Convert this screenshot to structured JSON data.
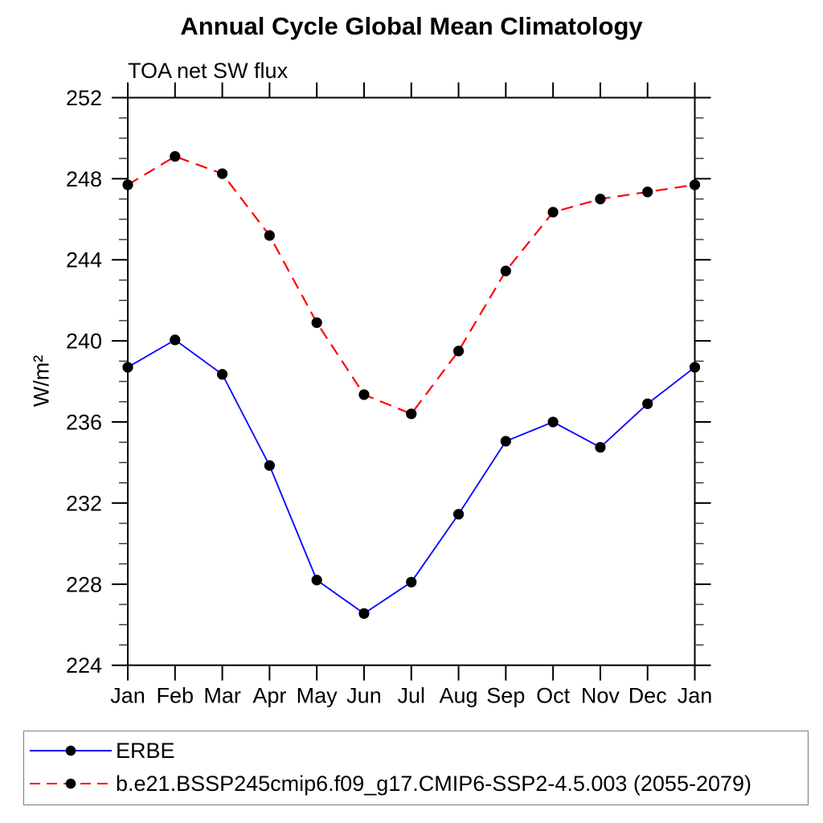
{
  "chart_data": {
    "type": "line",
    "title": "Annual Cycle Global Mean Climatology",
    "subtitle": "TOA net SW flux",
    "xlabel": "",
    "ylabel": "W/m²",
    "categories": [
      "Jan",
      "Feb",
      "Mar",
      "Apr",
      "May",
      "Jun",
      "Jul",
      "Aug",
      "Sep",
      "Oct",
      "Nov",
      "Dec",
      "Jan"
    ],
    "ylim": [
      224,
      252
    ],
    "ytick_major_interval": 4,
    "ytick_minor_interval": 1,
    "ytick_labels": [
      224,
      228,
      232,
      236,
      240,
      244,
      248,
      252
    ],
    "grid": false,
    "legend_position": "bottom",
    "marker": {
      "shape": "circle",
      "color": "#000000",
      "radius": 6.6
    },
    "series": [
      {
        "name": "ERBE",
        "color": "#0000ff",
        "line_style": "solid",
        "values": [
          238.7,
          240.05,
          238.35,
          233.85,
          228.2,
          226.55,
          228.1,
          231.45,
          235.05,
          236.0,
          234.75,
          236.9,
          238.7
        ]
      },
      {
        "name": "b.e21.BSSP245cmip6.f09_g17.CMIP6-SSP2-4.5.003 (2055-2079)",
        "color": "#ff0000",
        "line_style": "dashed",
        "values": [
          247.7,
          249.1,
          248.25,
          245.2,
          240.9,
          237.35,
          236.4,
          239.5,
          243.45,
          246.35,
          247.0,
          247.35,
          247.7
        ]
      }
    ]
  }
}
